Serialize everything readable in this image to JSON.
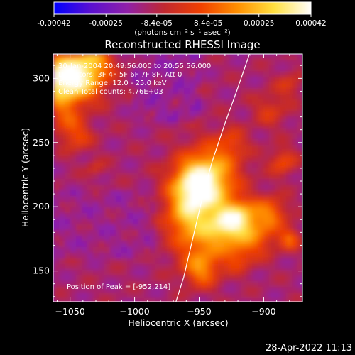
{
  "colorbar": {
    "tick_labels": [
      "-0.00042",
      "-0.00025",
      "-8.4e-05",
      "8.4e-05",
      "0.00025",
      "0.00042"
    ],
    "tick_values": [
      -0.00042,
      -0.00025,
      -8.4e-05,
      8.4e-05,
      0.00025,
      0.00042
    ],
    "range": [
      -0.00042,
      0.00042
    ],
    "unit_label": "(photons cm⁻² s⁻¹ asec⁻²)",
    "colormap": [
      "#0000ff",
      "#5a10d0",
      "#9020a8",
      "#c02830",
      "#f04000",
      "#ff9000",
      "#ffe040",
      "#ffffff"
    ]
  },
  "chart_data": {
    "type": "heatmap",
    "title": "Reconstructed RHESSI Image",
    "xlabel": "Heliocentric X (arcsec)",
    "ylabel": "Heliocentric Y (arcsec)",
    "xlim": [
      -1063,
      -870
    ],
    "ylim": [
      126,
      319
    ],
    "xticks": [
      -1050,
      -1000,
      -950,
      -900
    ],
    "yticks": [
      150,
      200,
      250,
      300
    ],
    "xtick_labels": [
      "−1050",
      "−1000",
      "−950",
      "−900"
    ],
    "ytick_labels": [
      "150",
      "200",
      "250",
      "300"
    ],
    "info_lines": [
      "30-Jan-2004 20:49:56.000 to 20:55:56.000",
      "Detectors: 3F 4F 5F 6F 7F 8F, Att 0",
      "Energy Range: 12.0 - 25.0 keV",
      "Clean     Total counts: 4.76E+03"
    ],
    "peak_label": "Position of Peak = [-952,214]",
    "peak": [
      -952,
      214
    ],
    "limb": [
      [
        -968,
        126
      ],
      [
        -962,
        145
      ],
      [
        -955,
        175
      ],
      [
        -948,
        205
      ],
      [
        -940,
        235
      ],
      [
        -930,
        265
      ],
      [
        -921,
        290
      ],
      [
        -911,
        319
      ]
    ]
  },
  "footer": {
    "timestamp": "28-Apr-2022 11:13"
  }
}
